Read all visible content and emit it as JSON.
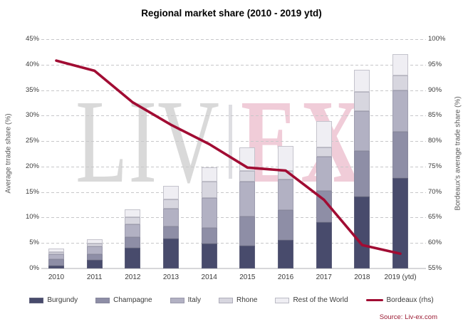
{
  "title": "Regional market share (2010 - 2019 ytd)",
  "source": "Source: Liv-ex.com",
  "watermark": {
    "left": "LIV",
    "right": "EX"
  },
  "colors": {
    "burgundy": "#484b6c",
    "champagne": "#8e8ea6",
    "italy": "#b2b1c3",
    "rhone": "#d7d6df",
    "rest_of_world": "#efeef3",
    "bordeaux_line": "#a10c33",
    "watermark_grey": "#d9d9d9",
    "watermark_pink": "#f0ccd8"
  },
  "chart_data": {
    "type": "bar",
    "subtype": "stacked-bars-with-line",
    "title": "Regional market share (2010 - 2019 ytd)",
    "categories": [
      "2010",
      "2011",
      "2012",
      "2013",
      "2014",
      "2015",
      "2016",
      "2017",
      "2018",
      "2019 (ytd)"
    ],
    "series": [
      {
        "name": "Burgundy",
        "color": "#484b6c",
        "values": [
          0.6,
          1.7,
          4.0,
          5.9,
          4.9,
          4.5,
          5.6,
          9.1,
          14.1,
          17.8
        ]
      },
      {
        "name": "Champagne",
        "color": "#8e8ea6",
        "values": [
          1.2,
          1.1,
          2.1,
          2.4,
          3.1,
          5.7,
          5.8,
          6.1,
          8.9,
          9.0
        ]
      },
      {
        "name": "Italy",
        "color": "#b2b1c3",
        "values": [
          1.0,
          1.6,
          2.6,
          3.5,
          5.8,
          6.9,
          6.1,
          6.7,
          7.9,
          8.1
        ]
      },
      {
        "name": "Rhone",
        "color": "#d7d6df",
        "values": [
          0.4,
          0.5,
          1.3,
          1.7,
          3.2,
          2.0,
          1.6,
          1.9,
          3.7,
          3.0
        ]
      },
      {
        "name": "Rest of the World",
        "color": "#efeef3",
        "values": [
          0.7,
          0.9,
          1.6,
          2.7,
          2.8,
          4.7,
          5.0,
          5.1,
          4.4,
          4.2
        ]
      }
    ],
    "stacked_totals": [
      3.9,
      5.8,
      11.6,
      16.2,
      19.8,
      23.8,
      24.1,
      28.9,
      39.0,
      42.1
    ],
    "line_series": {
      "name": "Bordeaux (rhs)",
      "color": "#a10c33",
      "axis": "right",
      "values": [
        95.8,
        93.8,
        87.6,
        83.2,
        79.4,
        74.8,
        74.2,
        68.5,
        59.6,
        57.9
      ]
    },
    "left_axis": {
      "label": "Average trrade share (%)",
      "min": 0,
      "max": 45,
      "step": 5,
      "ticks": [
        "0%",
        "5%",
        "10%",
        "15%",
        "20%",
        "25%",
        "30%",
        "35%",
        "40%",
        "45%"
      ]
    },
    "right_axis": {
      "label": "Bordeaux's average trade share (%)",
      "min": 55,
      "max": 100,
      "step": 5,
      "ticks": [
        "55%",
        "60%",
        "65%",
        "70%",
        "75%",
        "80%",
        "85%",
        "90%",
        "95%",
        "100%"
      ]
    },
    "grid": "horizontal-dashed",
    "legend_position": "bottom"
  }
}
